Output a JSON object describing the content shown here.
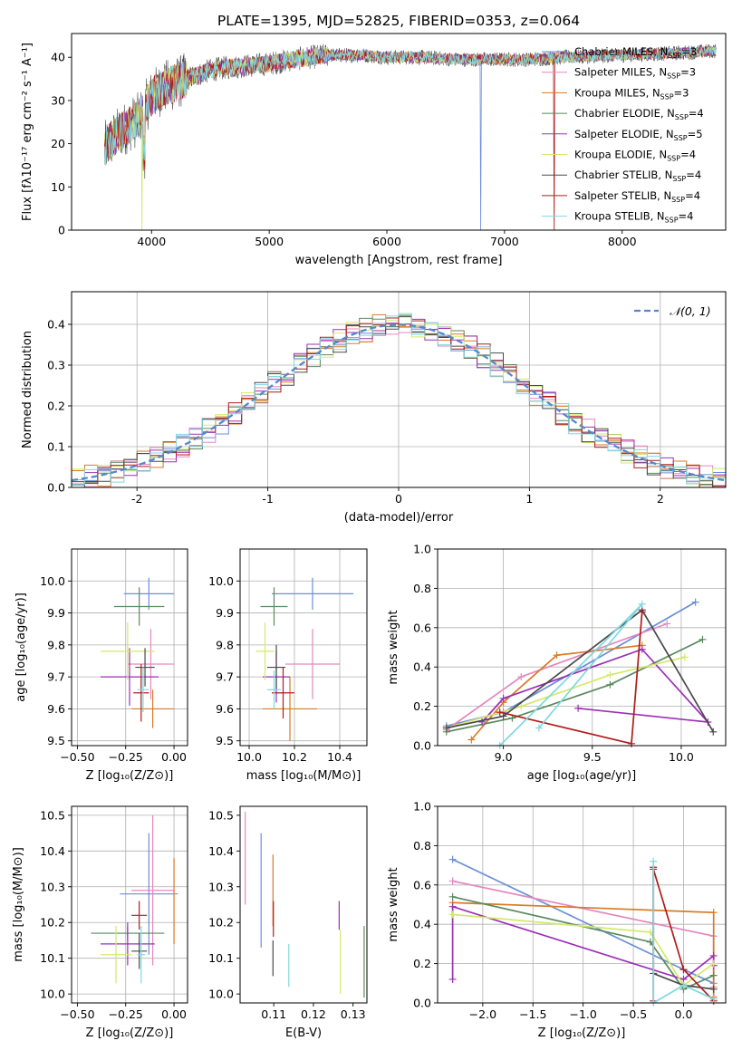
{
  "figure": {
    "title": "PLATE=1395, MJD=52825, FIBERID=0353, z=0.064"
  },
  "models": [
    {
      "name": "Chabrier MILES",
      "nssp": "3",
      "color": "#6c8fd8"
    },
    {
      "name": "Salpeter MILES",
      "nssp": "3",
      "color": "#e687bf"
    },
    {
      "name": "Kroupa MILES",
      "nssp": "3",
      "color": "#d97a25"
    },
    {
      "name": "Chabrier ELODIE",
      "nssp": "4",
      "color": "#5a8a5e"
    },
    {
      "name": "Salpeter ELODIE",
      "nssp": "5",
      "color": "#9b30b5"
    },
    {
      "name": "Kroupa ELODIE",
      "nssp": "4",
      "color": "#d4e86a"
    },
    {
      "name": "Chabrier STELIB",
      "nssp": "4",
      "color": "#4a4a4a"
    },
    {
      "name": "Salpeter STELIB",
      "nssp": "4",
      "color": "#b01c1c"
    },
    {
      "name": "Kroupa STELIB",
      "nssp": "4",
      "color": "#7fd8e0"
    }
  ],
  "chart_data": [
    {
      "id": "spectrum",
      "type": "line",
      "xlabel": "wavelength [Angstrom, rest frame]",
      "ylabel": "Flux [fλ10⁻¹⁷ erg cm⁻² s⁻¹ A⁻¹]",
      "xlim": [
        3320,
        8880
      ],
      "ylim": [
        0,
        45.5
      ],
      "xticks": [
        4000,
        5000,
        6000,
        7000,
        8000
      ],
      "yticks": [
        0,
        10,
        20,
        30,
        40
      ],
      "grid": false,
      "legend": "right",
      "continuum_x": [
        3600,
        3700,
        3800,
        3900,
        4000,
        4100,
        4200,
        4300,
        4400,
        4500,
        4600,
        4800,
        5000,
        5200,
        5500,
        5800,
        6000,
        6300,
        6600,
        6900,
        7200,
        7500,
        8000,
        8500,
        8800
      ],
      "continuum_y": [
        19,
        22,
        24,
        26,
        31,
        33,
        34,
        35,
        36,
        37,
        37.5,
        38,
        38.5,
        39.5,
        40.5,
        40.5,
        40,
        40,
        39.5,
        39.5,
        39.5,
        40,
        40.5,
        41,
        41.5
      ]
    },
    {
      "id": "residuals",
      "type": "line",
      "xlabel": "(data-model)/error",
      "ylabel": "Normed distribution",
      "xlim": [
        -2.5,
        2.5
      ],
      "ylim": [
        0,
        0.48
      ],
      "xticks": [
        -2,
        -1,
        0,
        1,
        2
      ],
      "yticks": [
        0.0,
        0.1,
        0.2,
        0.3,
        0.4
      ],
      "grid": true,
      "legend": "top-right",
      "reference_label": "𝒩(0, 1)",
      "reference_color": "#5588cc"
    },
    {
      "id": "age_vs_Z",
      "type": "scatter",
      "xlabel": "Z [log₁₀(Z/Z⊙)]",
      "ylabel": "age  [log₁₀(age/yr)]",
      "xlim": [
        -0.53,
        0.07
      ],
      "ylim": [
        9.485,
        10.1
      ],
      "xticks": [
        -0.5,
        -0.25,
        0.0
      ],
      "xticklabels": [
        "−0.50",
        "−0.25",
        "0.00"
      ],
      "minor_xticks": [
        -0.5,
        -0.45,
        -0.4,
        -0.35,
        -0.3,
        -0.25,
        -0.2,
        -0.15,
        -0.1,
        -0.05,
        0.0,
        0.05
      ],
      "minor_xticklabels": [
        "−0.50",
        "",
        "",
        "",
        "",
        "−0.25",
        "",
        "",
        "",
        "",
        "0.00",
        ""
      ],
      "yticks": [
        9.5,
        9.6,
        9.7,
        9.8,
        9.9,
        10.0
      ],
      "grid": true,
      "points": [
        {
          "x": -0.13,
          "y": 9.96,
          "xerr": 0.13,
          "yerr": 0.05,
          "color": "#6c8fd8"
        },
        {
          "x": -0.12,
          "y": 9.74,
          "xerr": 0.12,
          "yerr": 0.11,
          "color": "#e687bf"
        },
        {
          "x": -0.11,
          "y": 9.6,
          "xerr": 0.11,
          "yerr": 0.06,
          "color": "#d97a25"
        },
        {
          "x": -0.18,
          "y": 9.92,
          "xerr": 0.13,
          "yerr": 0.06,
          "color": "#5a8a5e"
        },
        {
          "x": -0.23,
          "y": 9.7,
          "xerr": 0.15,
          "yerr": 0.09,
          "color": "#9b30b5"
        },
        {
          "x": -0.24,
          "y": 9.78,
          "xerr": 0.14,
          "yerr": 0.09,
          "color": "#d4e86a"
        },
        {
          "x": -0.15,
          "y": 9.73,
          "xerr": 0.05,
          "yerr": 0.06,
          "color": "#4a4a4a"
        },
        {
          "x": -0.17,
          "y": 9.65,
          "xerr": 0.04,
          "yerr": 0.09,
          "color": "#b01c1c"
        },
        {
          "x": -0.16,
          "y": 9.66,
          "xerr": 0.03,
          "yerr": 0.07,
          "color": "#7fd8e0"
        }
      ]
    },
    {
      "id": "age_vs_mass",
      "type": "scatter",
      "xlabel": "mass [log₁₀(M/M⊙)]",
      "ylabel": "",
      "xlim": [
        9.96,
        10.52
      ],
      "ylim": [
        9.485,
        10.1
      ],
      "xticks": [
        10.0,
        10.2,
        10.4
      ],
      "xticklabels": [
        "10.0",
        "10.2",
        "10.4"
      ],
      "yticks": [
        9.5,
        9.6,
        9.7,
        9.8,
        9.9,
        10.0
      ],
      "grid": true,
      "points": [
        {
          "x": 10.28,
          "y": 9.96,
          "xerr": 0.18,
          "yerr": 0.05,
          "color": "#6c8fd8"
        },
        {
          "x": 10.28,
          "y": 9.74,
          "xerr": 0.12,
          "yerr": 0.11,
          "color": "#e687bf"
        },
        {
          "x": 10.18,
          "y": 9.6,
          "xerr": 0.12,
          "yerr": 0.1,
          "color": "#d97a25"
        },
        {
          "x": 10.11,
          "y": 9.92,
          "xerr": 0.06,
          "yerr": 0.06,
          "color": "#5a8a5e"
        },
        {
          "x": 10.12,
          "y": 9.7,
          "xerr": 0.06,
          "yerr": 0.08,
          "color": "#9b30b5"
        },
        {
          "x": 10.07,
          "y": 9.78,
          "xerr": 0.04,
          "yerr": 0.09,
          "color": "#d4e86a"
        },
        {
          "x": 10.12,
          "y": 9.73,
          "xerr": 0.04,
          "yerr": 0.07,
          "color": "#4a4a4a"
        },
        {
          "x": 10.15,
          "y": 9.65,
          "xerr": 0.05,
          "yerr": 0.08,
          "color": "#b01c1c"
        },
        {
          "x": 10.11,
          "y": 9.66,
          "xerr": 0.03,
          "yerr": 0.06,
          "color": "#7fd8e0"
        }
      ]
    },
    {
      "id": "weight_vs_age",
      "type": "line",
      "xlabel": "age  [log₁₀(age/yr)]",
      "ylabel": "mass weight",
      "xlim": [
        8.63,
        10.25
      ],
      "ylim": [
        0,
        1.0
      ],
      "xticks": [
        9.0,
        9.5,
        10.0
      ],
      "xticklabels": [
        "9.0",
        "9.5",
        "10.0"
      ],
      "yticks": [
        0.0,
        0.2,
        0.4,
        0.6,
        0.8,
        1.0
      ],
      "grid": true,
      "series": [
        {
          "color": "#6c8fd8",
          "x": [
            8.68,
            9.0,
            10.08
          ],
          "y": [
            0.1,
            0.17,
            0.73
          ]
        },
        {
          "color": "#e687bf",
          "x": [
            8.68,
            9.1,
            9.92
          ],
          "y": [
            0.08,
            0.35,
            0.62
          ]
        },
        {
          "color": "#d97a25",
          "x": [
            8.82,
            9.0,
            9.3,
            9.78
          ],
          "y": [
            0.03,
            0.22,
            0.46,
            0.51
          ]
        },
        {
          "color": "#5a8a5e",
          "x": [
            8.68,
            9.05,
            9.6,
            10.12
          ],
          "y": [
            0.07,
            0.14,
            0.31,
            0.54
          ]
        },
        {
          "color": "#9b30b5",
          "x": [
            8.88,
            9.0,
            9.78,
            10.15,
            9.42
          ],
          "y": [
            0.12,
            0.24,
            0.49,
            0.12,
            0.19
          ]
        },
        {
          "color": "#d4e86a",
          "x": [
            8.68,
            9.1,
            9.6,
            10.02
          ],
          "y": [
            0.09,
            0.2,
            0.36,
            0.45
          ]
        },
        {
          "color": "#4a4a4a",
          "x": [
            8.68,
            9.0,
            9.78,
            10.18
          ],
          "y": [
            0.09,
            0.15,
            0.69,
            0.07
          ]
        },
        {
          "color": "#b01c1c",
          "x": [
            8.98,
            9.72,
            9.78
          ],
          "y": [
            0.17,
            0.01,
            0.68
          ]
        },
        {
          "color": "#7fd8e0",
          "x": [
            8.98,
            9.78,
            9.2
          ],
          "y": [
            0.0,
            0.72,
            0.09
          ]
        }
      ]
    },
    {
      "id": "mass_vs_Z",
      "type": "scatter",
      "xlabel": "Z [log₁₀(Z/Z⊙)]",
      "ylabel": "mass [log₁₀(M/M⊙)]",
      "xlim": [
        -0.53,
        0.07
      ],
      "ylim": [
        9.975,
        10.525
      ],
      "xticks": [
        -0.5,
        -0.25,
        0.0
      ],
      "xticklabels": [
        "−0.50",
        "−0.25",
        "0.00"
      ],
      "minor_xticks": [
        -0.5,
        -0.45,
        -0.4,
        -0.35,
        -0.3,
        -0.25,
        -0.2,
        -0.15,
        -0.1,
        -0.05,
        0.0,
        0.05
      ],
      "minor_xticklabels": [
        "−0.50",
        "",
        "",
        "",
        "",
        "−0.25",
        "",
        "",
        "",
        "",
        "0.00",
        ""
      ],
      "yticks": [
        10.0,
        10.1,
        10.2,
        10.3,
        10.4,
        10.5
      ],
      "grid": true,
      "points": [
        {
          "x": -0.13,
          "y": 10.28,
          "xerr": 0.15,
          "yerr": 0.17,
          "color": "#6c8fd8"
        },
        {
          "x": -0.11,
          "y": 10.29,
          "xerr": 0.11,
          "yerr": 0.21,
          "color": "#e687bf"
        },
        {
          "x": 0.0,
          "y": 10.26,
          "xerr": 0.0,
          "yerr": 0.12,
          "color": "#d97a25"
        },
        {
          "x": -0.24,
          "y": 10.17,
          "xerr": 0.19,
          "yerr": 0.02,
          "color": "#5a8a5e"
        },
        {
          "x": -0.24,
          "y": 10.14,
          "xerr": 0.14,
          "yerr": 0.06,
          "color": "#9b30b5"
        },
        {
          "x": -0.3,
          "y": 10.11,
          "xerr": 0.08,
          "yerr": 0.08,
          "color": "#d4e86a"
        },
        {
          "x": -0.18,
          "y": 10.12,
          "xerr": 0.04,
          "yerr": 0.05,
          "color": "#4a4a4a"
        },
        {
          "x": -0.18,
          "y": 10.22,
          "xerr": 0.04,
          "yerr": 0.04,
          "color": "#b01c1c"
        },
        {
          "x": -0.17,
          "y": 10.11,
          "xerr": 0.02,
          "yerr": 0.08,
          "color": "#7fd8e0"
        }
      ]
    },
    {
      "id": "mass_vs_ebv",
      "type": "scatter",
      "xlabel": "E(B-V)",
      "ylabel": "",
      "xlim": [
        0.1015,
        0.1335
      ],
      "ylim": [
        9.975,
        10.525
      ],
      "xticks": [
        0.11,
        0.12,
        0.13
      ],
      "xticklabels": [
        "0.11",
        "0.12",
        "0.13"
      ],
      "yticks": [
        10.0,
        10.1,
        10.2,
        10.3,
        10.4,
        10.5
      ],
      "grid": false,
      "points": [
        {
          "x": 0.1068,
          "y": 10.29,
          "xerr": 0.0,
          "yerr": 0.16,
          "color": "#6c8fd8"
        },
        {
          "x": 0.1028,
          "y": 10.38,
          "xerr": 0.0,
          "yerr": 0.13,
          "color": "#e687bf"
        },
        {
          "x": 0.1098,
          "y": 10.29,
          "xerr": 0.0,
          "yerr": 0.1,
          "color": "#d97a25"
        },
        {
          "x": 0.1328,
          "y": 10.09,
          "xerr": 0.0,
          "yerr": 0.1,
          "color": "#5a8a5e"
        },
        {
          "x": 0.1265,
          "y": 10.22,
          "xerr": 0.0,
          "yerr": 0.04,
          "color": "#9b30b5"
        },
        {
          "x": 0.1268,
          "y": 10.09,
          "xerr": 0.0,
          "yerr": 0.09,
          "color": "#d4e86a"
        },
        {
          "x": 0.1098,
          "y": 10.1,
          "xerr": 0.0,
          "yerr": 0.05,
          "color": "#4a4a4a"
        },
        {
          "x": 0.1099,
          "y": 10.21,
          "xerr": 0.0,
          "yerr": 0.05,
          "color": "#b01c1c"
        },
        {
          "x": 0.1138,
          "y": 10.08,
          "xerr": 0.0,
          "yerr": 0.06,
          "color": "#7fd8e0"
        }
      ]
    },
    {
      "id": "weight_vs_Z",
      "type": "line",
      "xlabel": "Z [log₁₀(Z/Z⊙)]",
      "ylabel": "mass weight",
      "xlim": [
        -2.45,
        0.42
      ],
      "ylim": [
        0,
        1.0
      ],
      "xticks": [
        -2.0,
        -1.5,
        -1.0,
        -0.5,
        0.0
      ],
      "xticklabels": [
        "−2.0",
        "−1.5",
        "−1.0",
        "−0.5",
        "0.0"
      ],
      "yticks": [
        0.0,
        0.2,
        0.4,
        0.6,
        0.8,
        1.0
      ],
      "grid": true,
      "series": [
        {
          "color": "#6c8fd8",
          "x": [
            -2.3,
            0.0,
            0.3
          ],
          "y": [
            0.73,
            0.17,
            0.1
          ]
        },
        {
          "color": "#e687bf",
          "x": [
            -2.3,
            0.3,
            0.3
          ],
          "y": [
            0.62,
            0.34,
            0.08
          ]
        },
        {
          "color": "#d97a25",
          "x": [
            -2.3,
            0.3,
            0.3
          ],
          "y": [
            0.51,
            0.46,
            0.03
          ]
        },
        {
          "color": "#5a8a5e",
          "x": [
            -2.3,
            -0.33,
            0.0,
            0.3
          ],
          "y": [
            0.54,
            0.31,
            0.07,
            0.14
          ]
        },
        {
          "color": "#9b30b5",
          "x": [
            -2.3,
            -2.3,
            0.0,
            0.3,
            0.3
          ],
          "y": [
            0.12,
            0.49,
            0.12,
            0.24,
            0.19
          ]
        },
        {
          "color": "#d4e86a",
          "x": [
            -2.3,
            -0.33,
            0.0,
            0.3
          ],
          "y": [
            0.45,
            0.36,
            0.09,
            0.2
          ]
        },
        {
          "color": "#4a4a4a",
          "x": [
            -0.3,
            -0.3,
            0.0,
            0.3
          ],
          "y": [
            0.69,
            0.15,
            0.09,
            0.07
          ]
        },
        {
          "color": "#b01c1c",
          "x": [
            -0.3,
            -0.3,
            0.0,
            0.3
          ],
          "y": [
            0.01,
            0.68,
            0.17,
            0.01
          ]
        },
        {
          "color": "#7fd8e0",
          "x": [
            -0.3,
            -0.3,
            0.0,
            0.3
          ],
          "y": [
            0.72,
            0.0,
            0.09,
            0.02
          ]
        }
      ]
    }
  ]
}
